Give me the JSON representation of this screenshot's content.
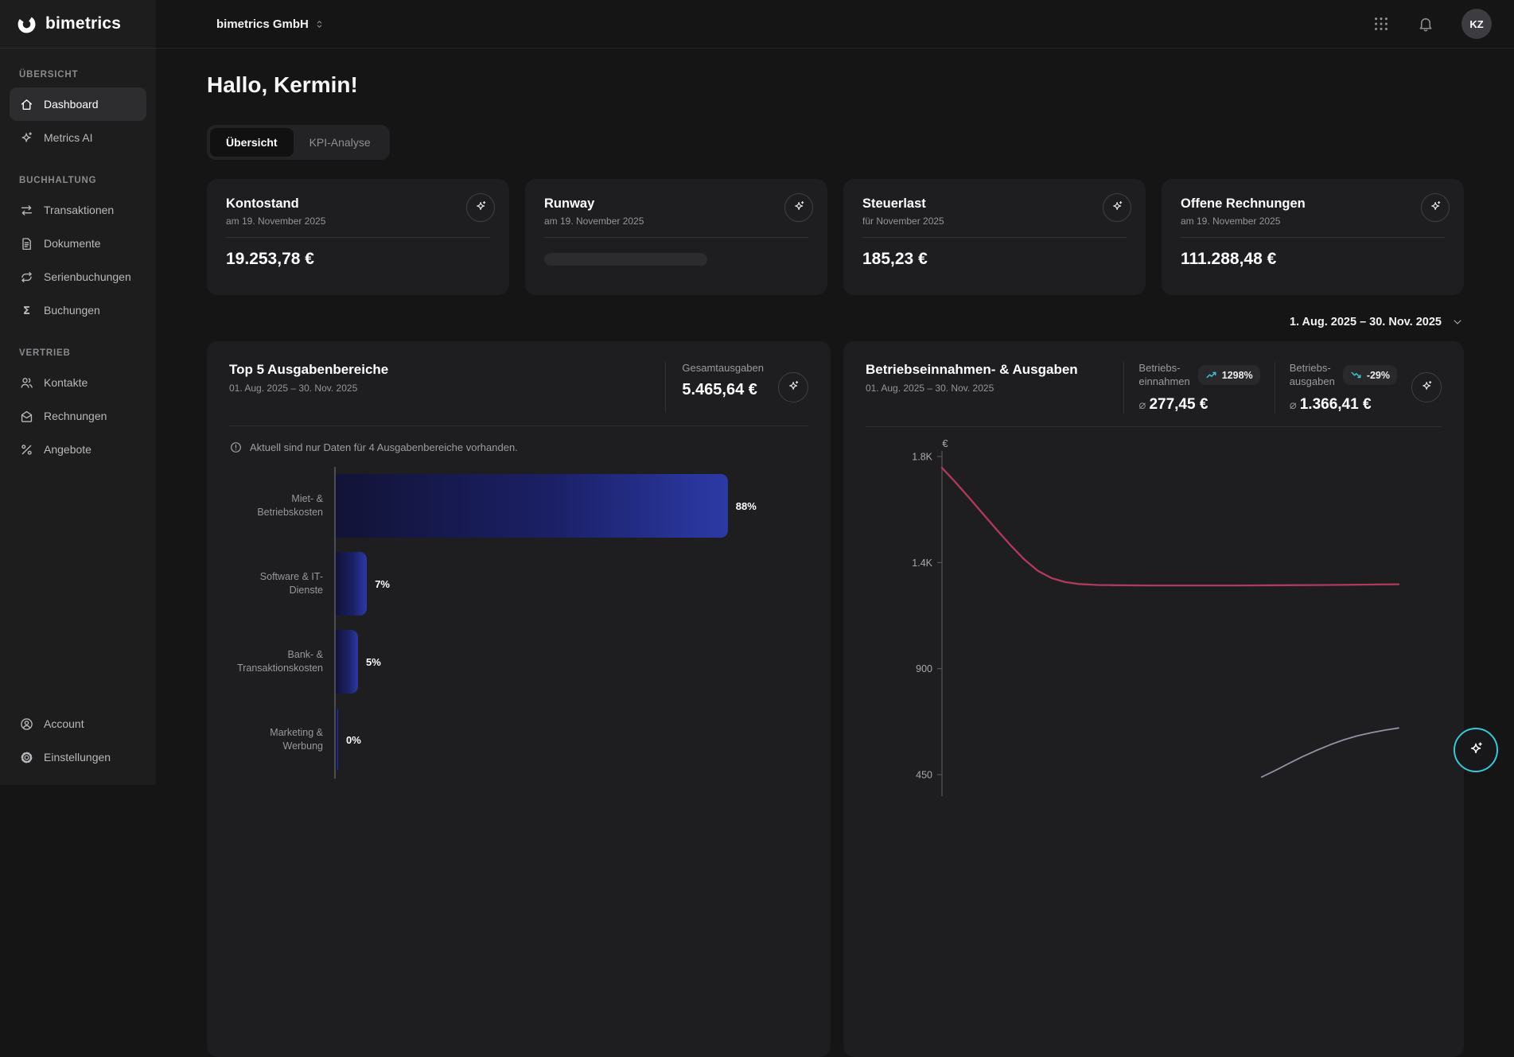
{
  "brand": {
    "logo_text": "bimetrics"
  },
  "topbar": {
    "company_selector": "bimetrics GmbH",
    "avatar_initials": "KZ"
  },
  "sidebar": {
    "sections": [
      {
        "label": "ÜBERSICHT",
        "items": [
          {
            "label": "Dashboard",
            "icon": "home-icon",
            "active": true
          },
          {
            "label": "Metrics AI",
            "icon": "sparkle-icon",
            "active": false
          }
        ]
      },
      {
        "label": "BUCHHALTUNG",
        "items": [
          {
            "label": "Transaktionen",
            "icon": "transfer-icon"
          },
          {
            "label": "Dokumente",
            "icon": "document-icon"
          },
          {
            "label": "Serienbuchungen",
            "icon": "repeat-icon"
          },
          {
            "label": "Buchungen",
            "icon": "sigma-icon"
          }
        ]
      },
      {
        "label": "VERTRIEB",
        "items": [
          {
            "label": "Kontakte",
            "icon": "contacts-icon"
          },
          {
            "label": "Rechnungen",
            "icon": "envelope-icon"
          },
          {
            "label": "Angebote",
            "icon": "percent-icon"
          }
        ]
      }
    ],
    "footer_items": [
      {
        "label": "Account",
        "icon": "account-icon"
      },
      {
        "label": "Einstellungen",
        "icon": "gear-icon"
      }
    ]
  },
  "main": {
    "greeting": "Hallo, Kermin!",
    "tabs": [
      {
        "label": "Übersicht",
        "active": true
      },
      {
        "label": "KPI-Analyse",
        "active": false
      }
    ],
    "kpi_cards": [
      {
        "title": "Kontostand",
        "subtitle": "am 19. November 2025",
        "value": "19.253,78 €"
      },
      {
        "title": "Runway",
        "subtitle": "am 19. November 2025",
        "value": "",
        "loading": true
      },
      {
        "title": "Steuerlast",
        "subtitle": "für November 2025",
        "value": "185,23 €"
      },
      {
        "title": "Offene Rechnungen",
        "subtitle": "am 19. November 2025",
        "value": "111.288,48 €"
      }
    ],
    "date_range": "1. Aug. 2025 – 30. Nov. 2025"
  },
  "expenses_card": {
    "title": "Top 5 Ausgabenbereiche",
    "subtitle": "01. Aug. 2025 – 30. Nov. 2025",
    "notice": "Aktuell sind nur Daten für 4 Ausgabenbereiche vorhanden."
  },
  "operating_card": {
    "title": "Betriebseinnahmen- & Ausgaben",
    "subtitle": "01. Aug. 2025 – 30. Nov. 2025",
    "stats": [
      {
        "label_lines": [
          "Betriebs-",
          "einnahmen"
        ],
        "badge": "1298%",
        "trend": "up",
        "avg_symbol": "⌀",
        "value": "277,45 €"
      },
      {
        "label_lines": [
          "Betriebs-",
          "ausgaben"
        ],
        "badge": "-29%",
        "trend": "down",
        "avg_symbol": "⌀",
        "value": "1.366,41 €"
      }
    ]
  },
  "chart_data": [
    {
      "type": "bar",
      "orientation": "horizontal",
      "title": "Top 5 Ausgabenbereiche",
      "subtitle": "01. Aug. 2025 – 30. Nov. 2025",
      "total_label": "Gesamtausgaben",
      "total_value": "5.465,64 €",
      "categories": [
        "Miet- & Betriebskosten",
        "Software & IT-Dienste",
        "Bank- & Transaktionskosten",
        "Marketing & Werbung"
      ],
      "values": [
        88,
        7,
        5,
        0
      ],
      "labels": [
        "88%",
        "7%",
        "5%",
        "0%"
      ],
      "unit": "%",
      "xlim": [
        0,
        100
      ],
      "grid": false,
      "bar_gradient": [
        "#121336",
        "#2c3aa6"
      ]
    },
    {
      "type": "line",
      "title": "Betriebseinnahmen- & Ausgaben",
      "subtitle": "01. Aug. 2025 – 30. Nov. 2025",
      "ylabel": "€",
      "ylim": [
        450,
        1800
      ],
      "yticks": [
        {
          "value": 1800,
          "label": "1.8K"
        },
        {
          "value": 1350,
          "label": "1.4K"
        },
        {
          "value": 900,
          "label": "900"
        },
        {
          "value": 450,
          "label": "450"
        }
      ],
      "grid": false,
      "legend_position": "none",
      "series": [
        {
          "name": "Betriebseinnahmen",
          "color": "#9093a0",
          "average": "277,45 €",
          "change": "1298%",
          "points": [
            [
              70,
              440
            ],
            [
              73,
              468
            ],
            [
              76,
              498
            ],
            [
              79,
              527
            ],
            [
              82,
              553
            ],
            [
              85,
              577
            ],
            [
              88,
              598
            ],
            [
              91,
              615
            ],
            [
              94,
              628
            ],
            [
              97,
              639
            ],
            [
              100,
              648
            ]
          ]
        },
        {
          "name": "Betriebsausgaben",
          "color": "#b13a5c",
          "average": "1.366,41 €",
          "change": "-29%",
          "points": [
            [
              0,
              1752
            ],
            [
              3,
              1690
            ],
            [
              6,
              1624
            ],
            [
              9,
              1556
            ],
            [
              12,
              1489
            ],
            [
              15,
              1424
            ],
            [
              18,
              1364
            ],
            [
              21,
              1315
            ],
            [
              24,
              1284
            ],
            [
              27,
              1267
            ],
            [
              30,
              1259
            ],
            [
              34,
              1255
            ],
            [
              38,
              1254
            ],
            [
              45,
              1253
            ],
            [
              55,
              1253
            ],
            [
              65,
              1253
            ],
            [
              75,
              1254
            ],
            [
              85,
              1255
            ],
            [
              100,
              1258
            ]
          ]
        }
      ]
    }
  ],
  "colors": {
    "accent_teal": "#3bc6d4",
    "card_bg": "#1e1e20",
    "sidebar_bg": "#1d1d1e",
    "page_bg": "#151516",
    "expenses_line": "#b13a5c",
    "income_line": "#9093a0"
  }
}
